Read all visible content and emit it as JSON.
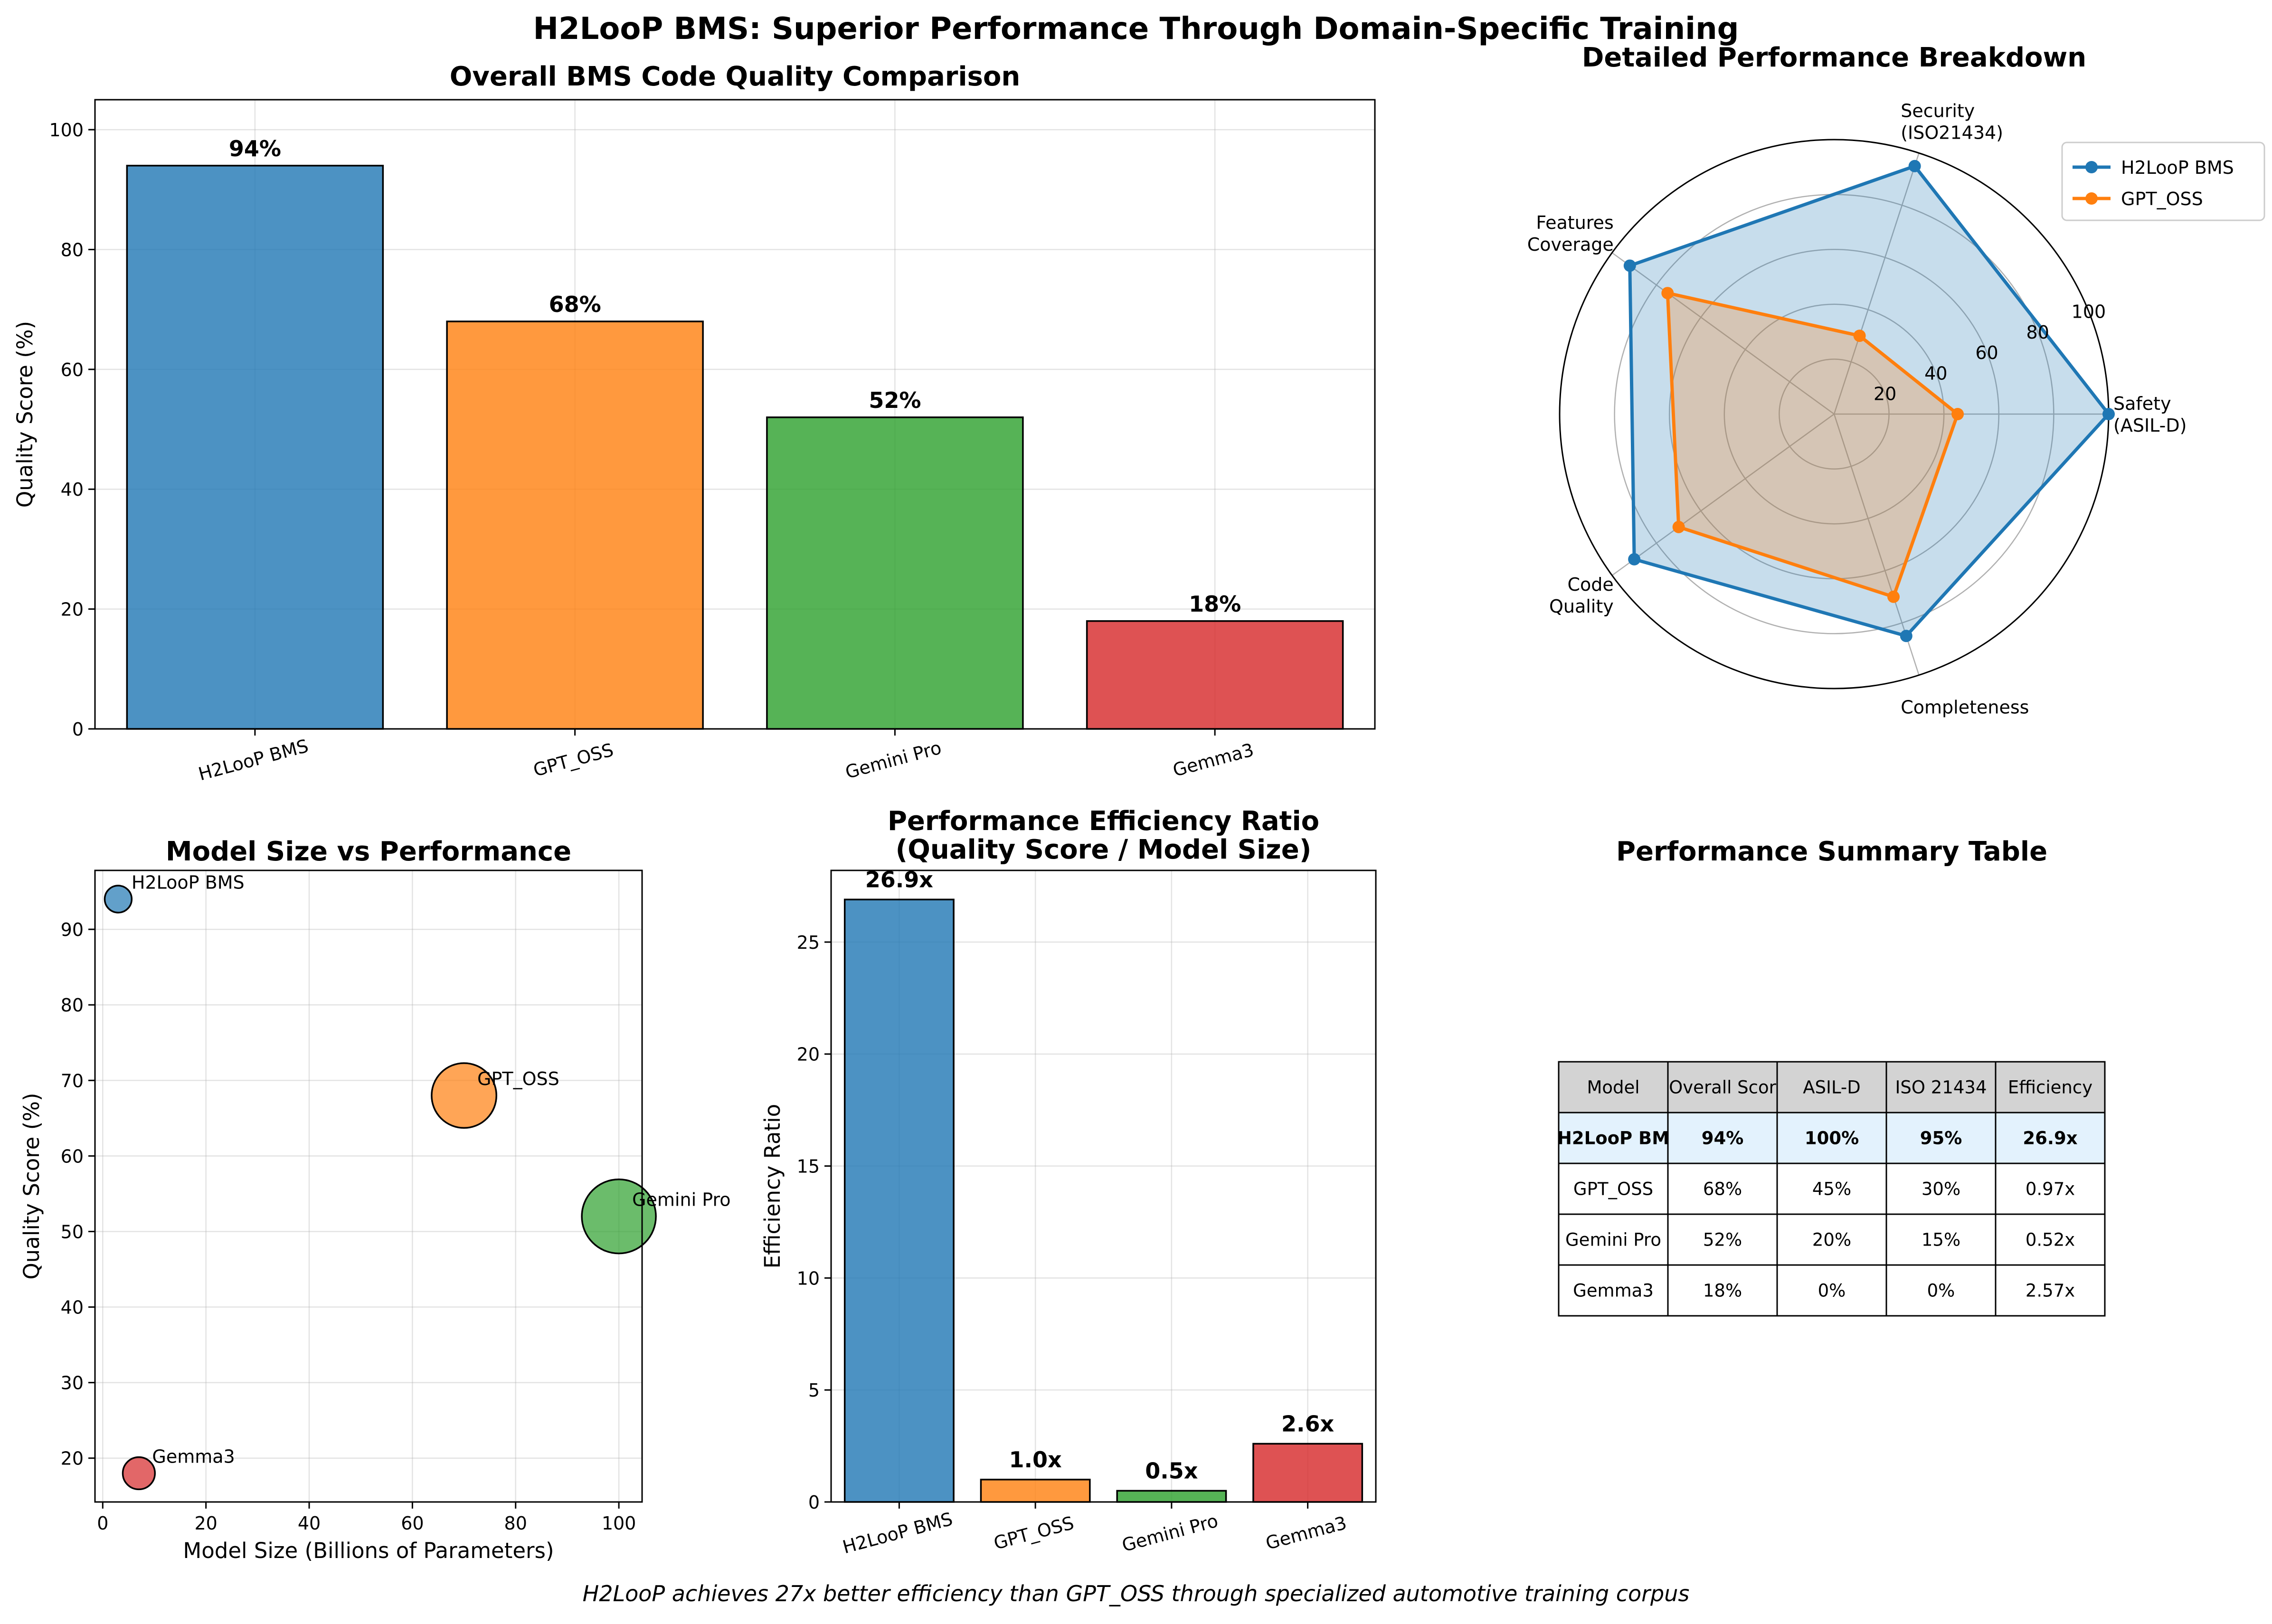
{
  "figure": {
    "title": "H2LooP BMS: Superior Performance Through Domain-Specific Training",
    "footnote": "H2LooP achieves 27x better efficiency than GPT_OSS through specialized automotive training corpus"
  },
  "colors": {
    "blue": "#1f77b4",
    "orange": "#ff7f0e",
    "green": "#2ca02c",
    "red": "#d62728",
    "table_header": "#d3d3d3",
    "table_highlight": "#e3f2fd"
  },
  "chart_data": [
    {
      "id": "quality",
      "type": "bar",
      "title": "Overall BMS Code Quality Comparison",
      "xlabel": "",
      "ylabel": "Quality Score (%)",
      "categories": [
        "H2LooP BMS",
        "GPT_OSS",
        "Gemini Pro",
        "Gemma3"
      ],
      "values": [
        94,
        68,
        52,
        18
      ],
      "value_labels": [
        "94%",
        "68%",
        "52%",
        "18%"
      ],
      "colors": [
        "#1f77b4",
        "#ff7f0e",
        "#2ca02c",
        "#d62728"
      ],
      "ylim": [
        0,
        105
      ],
      "yticks": [
        0,
        20,
        40,
        60,
        80,
        100
      ],
      "grid": true
    },
    {
      "id": "radar",
      "type": "radar",
      "title": "Detailed Performance Breakdown",
      "axes": [
        "Safety\n(ASIL-D)",
        "Security\n(ISO21434)",
        "Features\nCoverage",
        "Code\nQuality",
        "Completeness"
      ],
      "rlim": [
        0,
        100
      ],
      "rticks": [
        20,
        40,
        60,
        80,
        100
      ],
      "series": [
        {
          "name": "H2LooP BMS",
          "values": [
            100,
            95,
            92,
            90,
            85
          ],
          "color": "#1f77b4"
        },
        {
          "name": "GPT_OSS",
          "values": [
            45,
            30,
            75,
            70,
            70
          ],
          "color": "#ff7f0e"
        }
      ],
      "legend": "top-right",
      "grid": true
    },
    {
      "id": "scatter",
      "type": "scatter",
      "title": "Model Size vs Performance",
      "xlabel": "Model Size (Billions of Parameters)",
      "ylabel": "Quality Score (%)",
      "points": [
        {
          "label": "H2LooP BMS",
          "x": 3,
          "y": 94,
          "color": "#1f77b4"
        },
        {
          "label": "GPT_OSS",
          "x": 70,
          "y": 68,
          "color": "#ff7f0e"
        },
        {
          "label": "Gemini Pro",
          "x": 100,
          "y": 52,
          "color": "#2ca02c"
        },
        {
          "label": "Gemma3",
          "x": 7,
          "y": 18,
          "color": "#d62728"
        }
      ],
      "xlim": [
        -1.5,
        104.5
      ],
      "ylim": [
        14.2,
        97.8
      ],
      "xticks": [
        0,
        20,
        40,
        60,
        80,
        100
      ],
      "yticks": [
        20,
        30,
        40,
        50,
        60,
        70,
        80,
        90
      ],
      "grid": true
    },
    {
      "id": "efficiency",
      "type": "bar",
      "title": "Performance Efficiency Ratio\n(Quality Score / Model Size)",
      "xlabel": "",
      "ylabel": "Efficiency Ratio",
      "categories": [
        "H2LooP BMS",
        "GPT_OSS",
        "Gemini Pro",
        "Gemma3"
      ],
      "values": [
        26.9,
        1.0,
        0.5,
        2.6
      ],
      "value_labels": [
        "26.9x",
        "1.0x",
        "0.5x",
        "2.6x"
      ],
      "colors": [
        "#1f77b4",
        "#ff7f0e",
        "#2ca02c",
        "#d62728"
      ],
      "ylim": [
        0,
        28.2
      ],
      "yticks": [
        0,
        5,
        10,
        15,
        20,
        25
      ],
      "grid": true
    },
    {
      "id": "table",
      "type": "table",
      "title": "Performance Summary Table",
      "columns": [
        "Model",
        "Overall Scor",
        "ASIL-D",
        "ISO 21434",
        "Efficiency"
      ],
      "rows": [
        [
          "H2LooP BM",
          "94%",
          "100%",
          "95%",
          "26.9x"
        ],
        [
          "GPT_OSS",
          "68%",
          "45%",
          "30%",
          "0.97x"
        ],
        [
          "Gemini Pro",
          "52%",
          "20%",
          "15%",
          "0.52x"
        ],
        [
          "Gemma3",
          "18%",
          "0%",
          "0%",
          "2.57x"
        ]
      ],
      "highlight_row": 0
    }
  ]
}
